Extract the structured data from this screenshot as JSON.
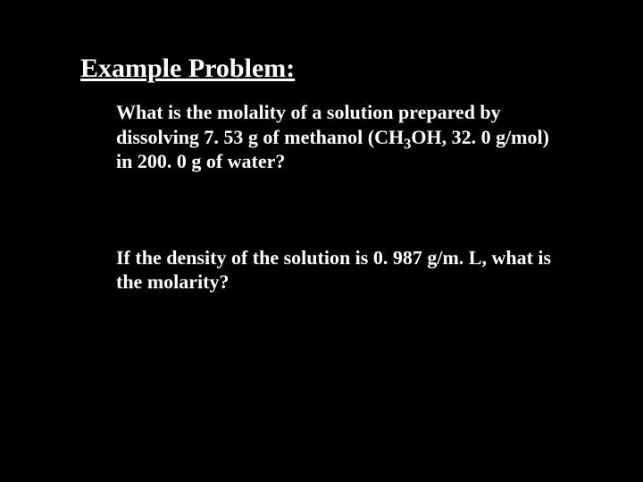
{
  "background_color": "#000000",
  "text_color": "#ffffff",
  "font_family": "Times New Roman",
  "title": "Example Problem:",
  "title_fontsize": 30,
  "body_fontsize": 22,
  "para1_pre": "What is the molality of a solution prepared by dissolving 7. 53 g of methanol (CH",
  "para1_sub": "3",
  "para1_post": "OH, 32. 0 g/mol) in 200. 0 g of water?",
  "para2": "If the density of the solution is 0. 987 g/m. L, what is the molarity?"
}
